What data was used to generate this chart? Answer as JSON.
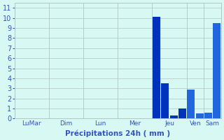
{
  "values": [
    0,
    0,
    0,
    0,
    0,
    0,
    0,
    0,
    0,
    0,
    0,
    0,
    0,
    0,
    0,
    0,
    10.1,
    3.5,
    0.3,
    1.0,
    2.9,
    0.5,
    0.6,
    9.5
  ],
  "n_bars": 24,
  "day_labels": [
    "LuMar",
    "Dim",
    "Lun",
    "Mer",
    "Jeu",
    "Ven",
    "Sam"
  ],
  "day_centers": [
    1.5,
    5.5,
    9.5,
    13.5,
    17.5,
    21.5,
    23.5
  ],
  "day_tick_positions": [
    0,
    4,
    8,
    12,
    16,
    20,
    22
  ],
  "ylim": [
    0,
    11.5
  ],
  "yticks": [
    0,
    1,
    2,
    3,
    4,
    5,
    6,
    7,
    8,
    9,
    10,
    11
  ],
  "bar_color_dark": "#0033bb",
  "bar_color_light": "#2266dd",
  "background_color": "#d8f8f4",
  "grid_color": "#b0c8c0",
  "xlabel": "Précipitations 24h ( mm )",
  "xlabel_color": "#3355bb",
  "tick_color": "#3355bb",
  "bar_width": 0.9
}
